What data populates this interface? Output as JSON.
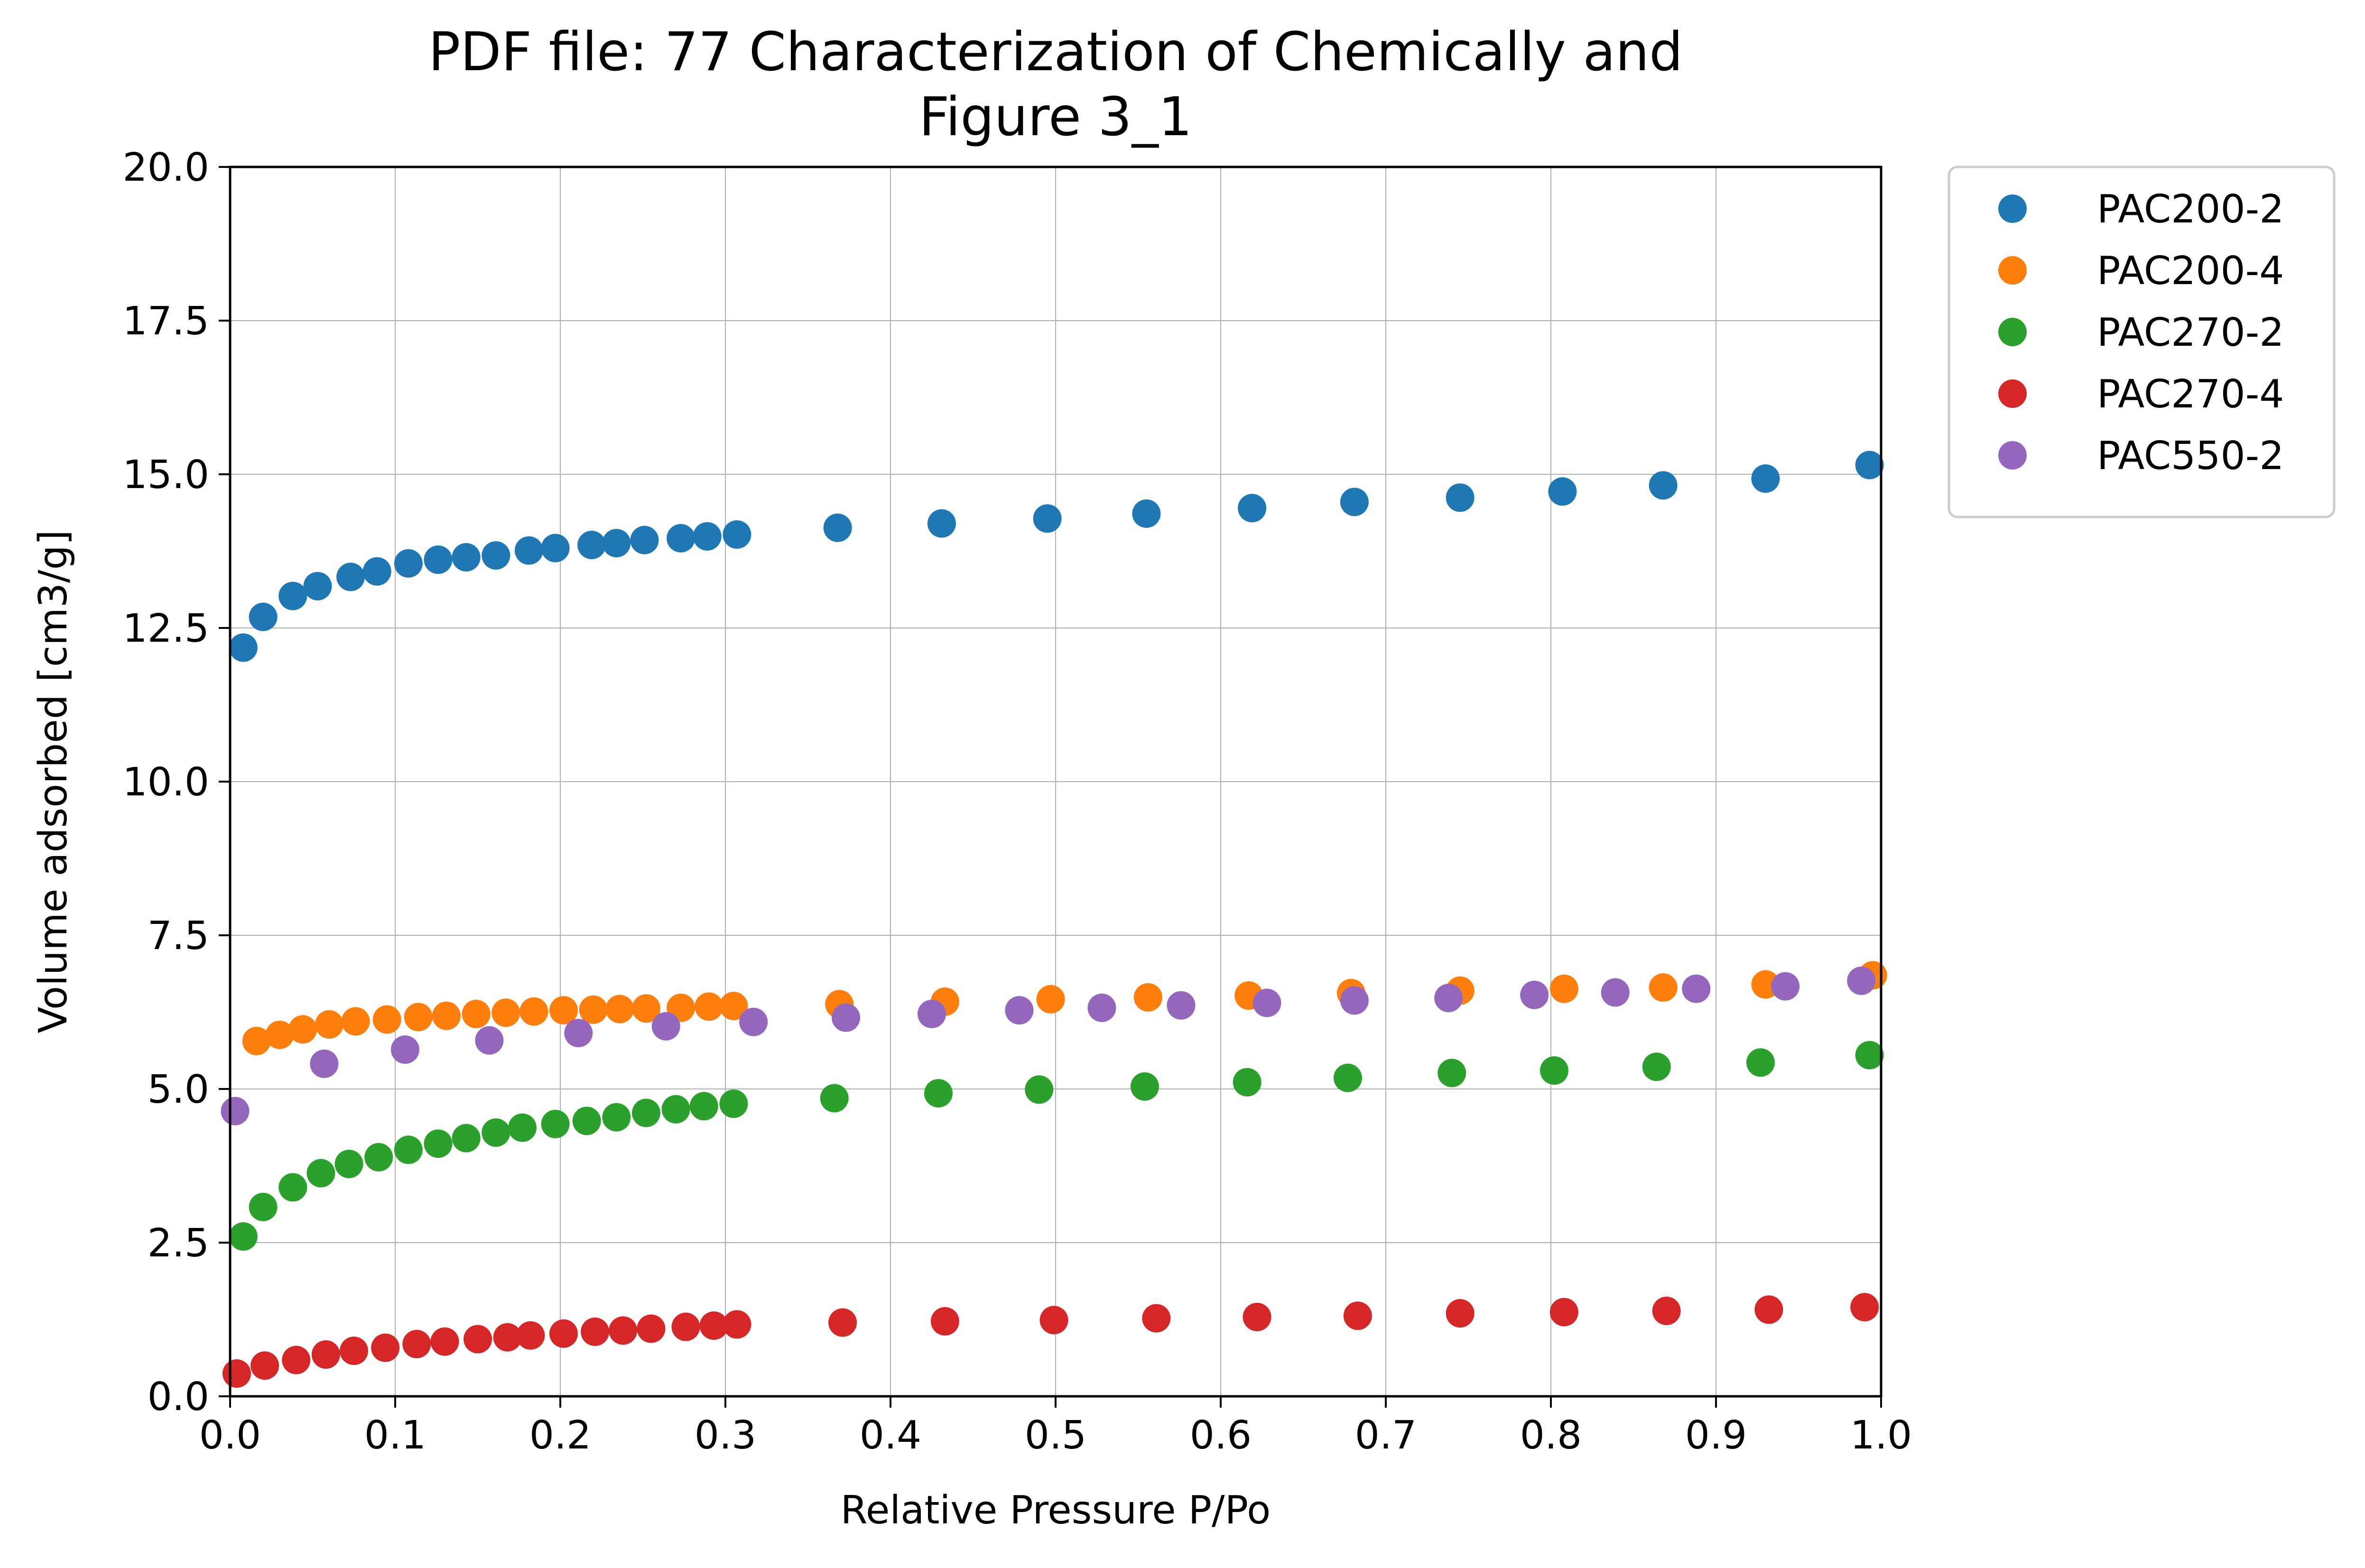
{
  "chart_data": {
    "type": "scatter",
    "title": [
      "PDF file: 77 Characterization of Chemically and",
      "Figure 3_1"
    ],
    "xlabel": "Relative Pressure P/Po",
    "ylabel": "Volume adsorbed [cm3/g]",
    "xlim": [
      0.0,
      1.0
    ],
    "ylim": [
      0.0,
      20.0
    ],
    "xticks": [
      0.0,
      0.1,
      0.2,
      0.3,
      0.4,
      0.5,
      0.6,
      0.7,
      0.8,
      0.9,
      1.0
    ],
    "xtick_labels": [
      "0.0",
      "0.1",
      "0.2",
      "0.3",
      "0.4",
      "0.5",
      "0.6",
      "0.7",
      "0.8",
      "0.9",
      "1.0"
    ],
    "yticks": [
      0.0,
      2.5,
      5.0,
      7.5,
      10.0,
      12.5,
      15.0,
      17.5,
      20.0
    ],
    "ytick_labels": [
      "0.0",
      "2.5",
      "5.0",
      "7.5",
      "10.0",
      "12.5",
      "15.0",
      "17.5",
      "20.0"
    ],
    "grid": true,
    "legend_position": "outside-top-right",
    "series": [
      {
        "name": "PAC200-2",
        "color": "#1f77b4",
        "points": [
          [
            0.008,
            12.18
          ],
          [
            0.02,
            12.68
          ],
          [
            0.038,
            13.02
          ],
          [
            0.053,
            13.18
          ],
          [
            0.073,
            13.33
          ],
          [
            0.089,
            13.42
          ],
          [
            0.108,
            13.55
          ],
          [
            0.126,
            13.61
          ],
          [
            0.143,
            13.65
          ],
          [
            0.161,
            13.68
          ],
          [
            0.181,
            13.76
          ],
          [
            0.197,
            13.8
          ],
          [
            0.219,
            13.85
          ],
          [
            0.234,
            13.88
          ],
          [
            0.251,
            13.93
          ],
          [
            0.273,
            13.96
          ],
          [
            0.289,
            13.99
          ],
          [
            0.307,
            14.02
          ],
          [
            0.368,
            14.13
          ],
          [
            0.431,
            14.2
          ],
          [
            0.495,
            14.28
          ],
          [
            0.555,
            14.36
          ],
          [
            0.619,
            14.45
          ],
          [
            0.681,
            14.55
          ],
          [
            0.745,
            14.62
          ],
          [
            0.807,
            14.72
          ],
          [
            0.868,
            14.82
          ],
          [
            0.93,
            14.93
          ],
          [
            0.993,
            15.15
          ]
        ]
      },
      {
        "name": "PAC200-4",
        "color": "#ff7f0e",
        "points": [
          [
            0.016,
            5.78
          ],
          [
            0.03,
            5.88
          ],
          [
            0.044,
            5.97
          ],
          [
            0.06,
            6.05
          ],
          [
            0.076,
            6.1
          ],
          [
            0.095,
            6.13
          ],
          [
            0.114,
            6.17
          ],
          [
            0.131,
            6.19
          ],
          [
            0.149,
            6.22
          ],
          [
            0.167,
            6.24
          ],
          [
            0.184,
            6.26
          ],
          [
            0.202,
            6.28
          ],
          [
            0.22,
            6.29
          ],
          [
            0.236,
            6.3
          ],
          [
            0.252,
            6.31
          ],
          [
            0.273,
            6.32
          ],
          [
            0.29,
            6.34
          ],
          [
            0.305,
            6.35
          ],
          [
            0.369,
            6.38
          ],
          [
            0.433,
            6.42
          ],
          [
            0.497,
            6.46
          ],
          [
            0.556,
            6.49
          ],
          [
            0.617,
            6.52
          ],
          [
            0.679,
            6.56
          ],
          [
            0.745,
            6.6
          ],
          [
            0.808,
            6.63
          ],
          [
            0.868,
            6.65
          ],
          [
            0.93,
            6.7
          ],
          [
            0.995,
            6.85
          ]
        ]
      },
      {
        "name": "PAC270-2",
        "color": "#2ca02c",
        "points": [
          [
            0.008,
            2.6
          ],
          [
            0.02,
            3.08
          ],
          [
            0.038,
            3.4
          ],
          [
            0.055,
            3.63
          ],
          [
            0.072,
            3.78
          ],
          [
            0.09,
            3.89
          ],
          [
            0.108,
            4.01
          ],
          [
            0.126,
            4.11
          ],
          [
            0.143,
            4.2
          ],
          [
            0.161,
            4.29
          ],
          [
            0.177,
            4.37
          ],
          [
            0.197,
            4.43
          ],
          [
            0.216,
            4.48
          ],
          [
            0.234,
            4.54
          ],
          [
            0.252,
            4.61
          ],
          [
            0.27,
            4.67
          ],
          [
            0.287,
            4.72
          ],
          [
            0.305,
            4.76
          ],
          [
            0.366,
            4.85
          ],
          [
            0.429,
            4.93
          ],
          [
            0.49,
            4.99
          ],
          [
            0.554,
            5.04
          ],
          [
            0.616,
            5.11
          ],
          [
            0.677,
            5.18
          ],
          [
            0.74,
            5.26
          ],
          [
            0.802,
            5.3
          ],
          [
            0.864,
            5.36
          ],
          [
            0.927,
            5.43
          ],
          [
            0.993,
            5.55
          ]
        ]
      },
      {
        "name": "PAC270-4",
        "color": "#d62728",
        "points": [
          [
            0.004,
            0.37
          ],
          [
            0.021,
            0.5
          ],
          [
            0.04,
            0.59
          ],
          [
            0.058,
            0.68
          ],
          [
            0.075,
            0.74
          ],
          [
            0.094,
            0.79
          ],
          [
            0.113,
            0.85
          ],
          [
            0.13,
            0.89
          ],
          [
            0.15,
            0.93
          ],
          [
            0.168,
            0.96
          ],
          [
            0.182,
            0.99
          ],
          [
            0.202,
            1.02
          ],
          [
            0.221,
            1.05
          ],
          [
            0.238,
            1.07
          ],
          [
            0.255,
            1.1
          ],
          [
            0.276,
            1.13
          ],
          [
            0.293,
            1.15
          ],
          [
            0.307,
            1.17
          ],
          [
            0.371,
            1.2
          ],
          [
            0.433,
            1.22
          ],
          [
            0.499,
            1.24
          ],
          [
            0.561,
            1.27
          ],
          [
            0.622,
            1.29
          ],
          [
            0.683,
            1.31
          ],
          [
            0.745,
            1.35
          ],
          [
            0.808,
            1.37
          ],
          [
            0.87,
            1.39
          ],
          [
            0.932,
            1.41
          ],
          [
            0.99,
            1.45
          ]
        ]
      },
      {
        "name": "PAC550-2",
        "color": "#9467bd",
        "points": [
          [
            0.003,
            4.64
          ],
          [
            0.057,
            5.41
          ],
          [
            0.106,
            5.64
          ],
          [
            0.157,
            5.79
          ],
          [
            0.211,
            5.91
          ],
          [
            0.264,
            6.02
          ],
          [
            0.317,
            6.09
          ],
          [
            0.373,
            6.16
          ],
          [
            0.425,
            6.22
          ],
          [
            0.478,
            6.28
          ],
          [
            0.528,
            6.32
          ],
          [
            0.576,
            6.36
          ],
          [
            0.628,
            6.4
          ],
          [
            0.681,
            6.44
          ],
          [
            0.738,
            6.48
          ],
          [
            0.79,
            6.53
          ],
          [
            0.839,
            6.57
          ],
          [
            0.888,
            6.63
          ],
          [
            0.942,
            6.67
          ],
          [
            0.988,
            6.76
          ]
        ]
      }
    ]
  }
}
